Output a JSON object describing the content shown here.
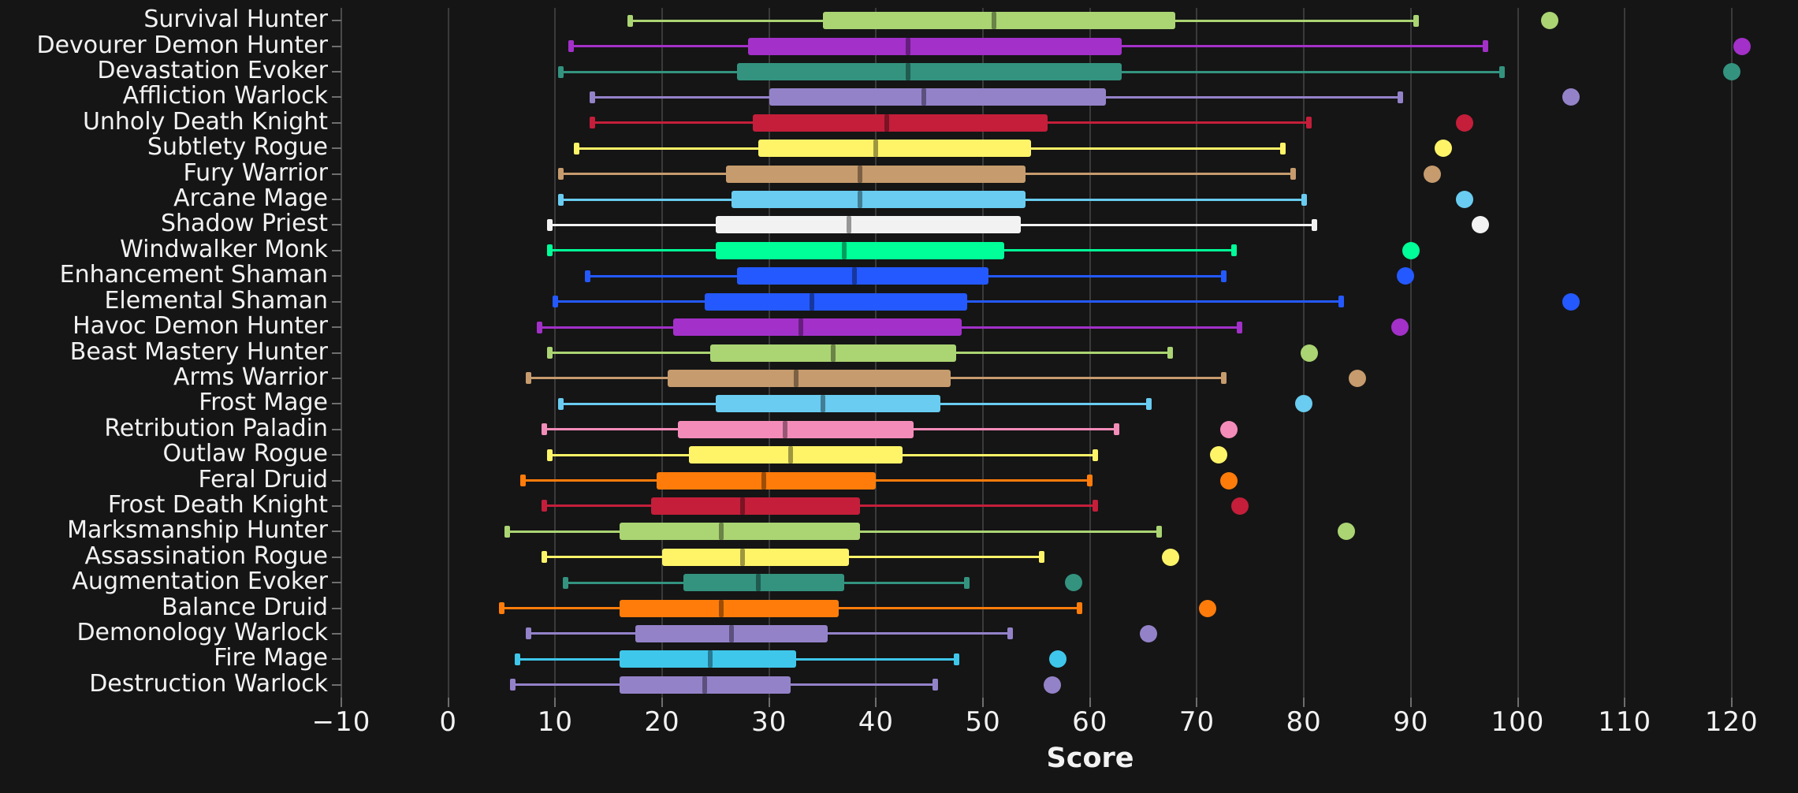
{
  "chart_data": {
    "type": "boxplot",
    "orientation": "horizontal",
    "title": "",
    "xlabel": "Score",
    "ylabel": "",
    "xlim": [
      -10,
      126.2
    ],
    "grid": "vertical-only",
    "legend": "none",
    "x_tick_values": [
      -10,
      0,
      10,
      20,
      30,
      40,
      50,
      60,
      70,
      80,
      90,
      100,
      110,
      120
    ],
    "x_tick_labels": [
      "−10",
      "0",
      "10",
      "20",
      "30",
      "40",
      "50",
      "60",
      "70",
      "80",
      "90",
      "100",
      "110",
      "120"
    ],
    "series": [
      {
        "label": "Survival Hunter",
        "color": "#ABD473",
        "low": 17,
        "q1": 35,
        "median": 51,
        "q3": 68,
        "high": 90.5,
        "outliers": [
          103
        ]
      },
      {
        "label": "Devourer Demon Hunter",
        "color": "#A330C9",
        "low": 11.5,
        "q1": 28,
        "median": 43,
        "q3": 63,
        "high": 97,
        "outliers": [
          121
        ]
      },
      {
        "label": "Devastation Evoker",
        "color": "#33937F",
        "low": 10.5,
        "q1": 27,
        "median": 43,
        "q3": 63,
        "high": 98.5,
        "outliers": [
          120
        ]
      },
      {
        "label": "Affliction Warlock",
        "color": "#9482C9",
        "low": 13.5,
        "q1": 30,
        "median": 44.5,
        "q3": 61.5,
        "high": 89,
        "outliers": [
          105
        ]
      },
      {
        "label": "Unholy Death Knight",
        "color": "#C41E3A",
        "low": 13.5,
        "q1": 28.5,
        "median": 41,
        "q3": 56,
        "high": 80.5,
        "outliers": [
          95
        ]
      },
      {
        "label": "Subtlety Rogue",
        "color": "#FFF468",
        "low": 12,
        "q1": 29,
        "median": 40,
        "q3": 54.5,
        "high": 78,
        "outliers": [
          93
        ]
      },
      {
        "label": "Fury Warrior",
        "color": "#C69B6D",
        "low": 10.5,
        "q1": 26,
        "median": 38.5,
        "q3": 54,
        "high": 79,
        "outliers": [
          92
        ]
      },
      {
        "label": "Arcane Mage",
        "color": "#69CCF0",
        "low": 10.5,
        "q1": 26.5,
        "median": 38.5,
        "q3": 54,
        "high": 80,
        "outliers": [
          95
        ]
      },
      {
        "label": "Shadow Priest",
        "color": "#F2F2F2",
        "low": 9.5,
        "q1": 25,
        "median": 37.5,
        "q3": 53.5,
        "high": 81,
        "outliers": [
          96.5
        ]
      },
      {
        "label": "Windwalker Monk",
        "color": "#00FF98",
        "low": 9.5,
        "q1": 25,
        "median": 37,
        "q3": 52,
        "high": 73.5,
        "outliers": [
          90
        ]
      },
      {
        "label": "Enhancement Shaman",
        "color": "#2459FF",
        "low": 13,
        "q1": 27,
        "median": 38,
        "q3": 50.5,
        "high": 72.5,
        "outliers": [
          89.5
        ]
      },
      {
        "label": "Elemental Shaman",
        "color": "#2459FF",
        "low": 10,
        "q1": 24,
        "median": 34,
        "q3": 48.5,
        "high": 83.5,
        "outliers": [
          105
        ]
      },
      {
        "label": "Havoc Demon Hunter",
        "color": "#A330C9",
        "low": 8.5,
        "q1": 21,
        "median": 33,
        "q3": 48,
        "high": 74,
        "outliers": [
          89
        ]
      },
      {
        "label": "Beast Mastery Hunter",
        "color": "#ABD473",
        "low": 9.5,
        "q1": 24.5,
        "median": 36,
        "q3": 47.5,
        "high": 67.5,
        "outliers": [
          80.5
        ]
      },
      {
        "label": "Arms Warrior",
        "color": "#C69B6D",
        "low": 7.5,
        "q1": 20.5,
        "median": 32.5,
        "q3": 47,
        "high": 72.5,
        "outliers": [
          85
        ]
      },
      {
        "label": "Frost Mage",
        "color": "#69CCF0",
        "low": 10.5,
        "q1": 25,
        "median": 35,
        "q3": 46,
        "high": 65.5,
        "outliers": [
          80
        ]
      },
      {
        "label": "Retribution Paladin",
        "color": "#F48CBA",
        "low": 9,
        "q1": 21.5,
        "median": 31.5,
        "q3": 43.5,
        "high": 62.5,
        "outliers": [
          73
        ]
      },
      {
        "label": "Outlaw Rogue",
        "color": "#FFF468",
        "low": 9.5,
        "q1": 22.5,
        "median": 32,
        "q3": 42.5,
        "high": 60.5,
        "outliers": [
          72
        ]
      },
      {
        "label": "Feral Druid",
        "color": "#FF7C0A",
        "low": 7,
        "q1": 19.5,
        "median": 29.5,
        "q3": 40,
        "high": 60,
        "outliers": [
          73
        ]
      },
      {
        "label": "Frost Death Knight",
        "color": "#C41E3A",
        "low": 9,
        "q1": 19,
        "median": 27.5,
        "q3": 38.5,
        "high": 60.5,
        "outliers": [
          74
        ]
      },
      {
        "label": "Marksmanship Hunter",
        "color": "#ABD473",
        "low": 5.5,
        "q1": 16,
        "median": 25.5,
        "q3": 38.5,
        "high": 66.5,
        "outliers": [
          84
        ]
      },
      {
        "label": "Assassination Rogue",
        "color": "#FFF468",
        "low": 9,
        "q1": 20,
        "median": 27.5,
        "q3": 37.5,
        "high": 55.5,
        "outliers": [
          67.5
        ]
      },
      {
        "label": "Augmentation Evoker",
        "color": "#33937F",
        "low": 11,
        "q1": 22,
        "median": 29,
        "q3": 37,
        "high": 48.5,
        "outliers": [
          58.5
        ]
      },
      {
        "label": "Balance Druid",
        "color": "#FF7C0A",
        "low": 5,
        "q1": 16,
        "median": 25.5,
        "q3": 36.5,
        "high": 59,
        "outliers": [
          71
        ]
      },
      {
        "label": "Demonology Warlock",
        "color": "#9482C9",
        "low": 7.5,
        "q1": 17.5,
        "median": 26.5,
        "q3": 35.5,
        "high": 52.5,
        "outliers": [
          65.5
        ]
      },
      {
        "label": "Fire Mage",
        "color": "#3FC7EB",
        "low": 6.5,
        "q1": 16,
        "median": 24.5,
        "q3": 32.5,
        "high": 47.5,
        "outliers": [
          57
        ]
      },
      {
        "label": "Destruction Warlock",
        "color": "#9482C9",
        "low": 6,
        "q1": 16,
        "median": 24,
        "q3": 32,
        "high": 45.5,
        "outliers": [
          56.5
        ]
      }
    ]
  },
  "style": {
    "background": "#151515",
    "grid_color": "#3a3a3a",
    "spine_color": "#4a4a4a",
    "tick_color": "#6e6e6e",
    "text_color": "#f2f2f2"
  }
}
